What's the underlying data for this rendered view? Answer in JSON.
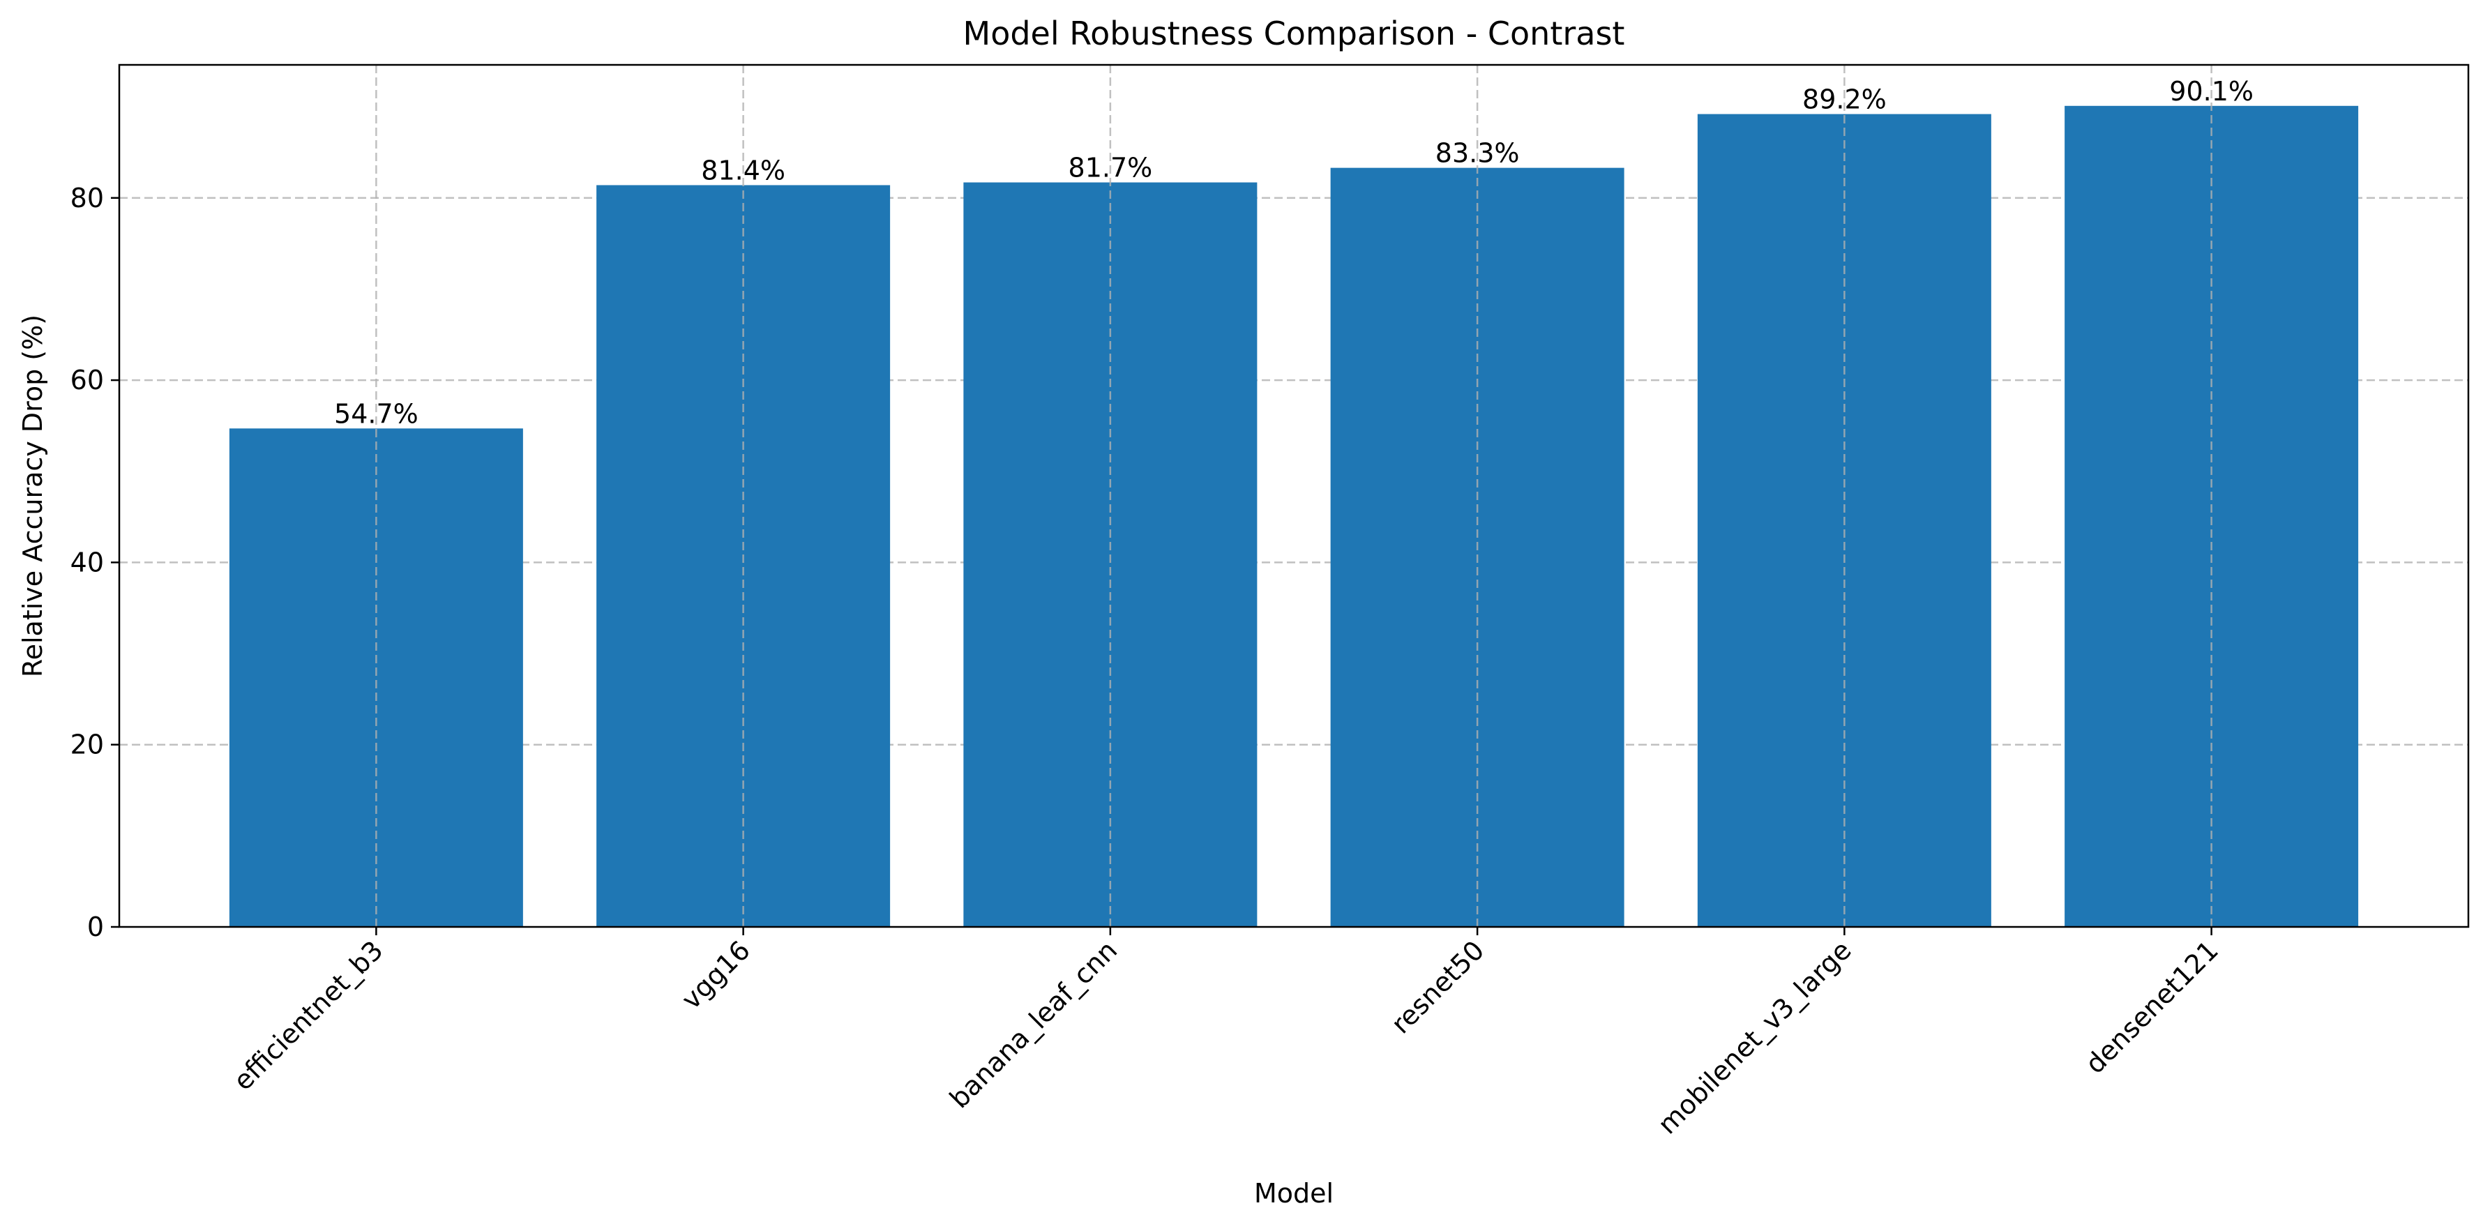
{
  "chart_data": {
    "type": "bar",
    "title": "Model Robustness Comparison - Contrast",
    "xlabel": "Model",
    "ylabel": "Relative Accuracy Drop (%)",
    "categories": [
      "efficientnet_b3",
      "vgg16",
      "banana_leaf_cnn",
      "resnet50",
      "mobilenet_v3_large",
      "densenet121"
    ],
    "values": [
      54.7,
      81.4,
      81.7,
      83.3,
      89.2,
      90.1
    ],
    "value_labels": [
      "54.7%",
      "81.4%",
      "81.7%",
      "83.3%",
      "89.2%",
      "90.1%"
    ],
    "ylim": [
      0,
      94.6
    ],
    "yticks": [
      0,
      20,
      40,
      60,
      80
    ],
    "grid": true,
    "bar_color": "#1f77b4"
  }
}
